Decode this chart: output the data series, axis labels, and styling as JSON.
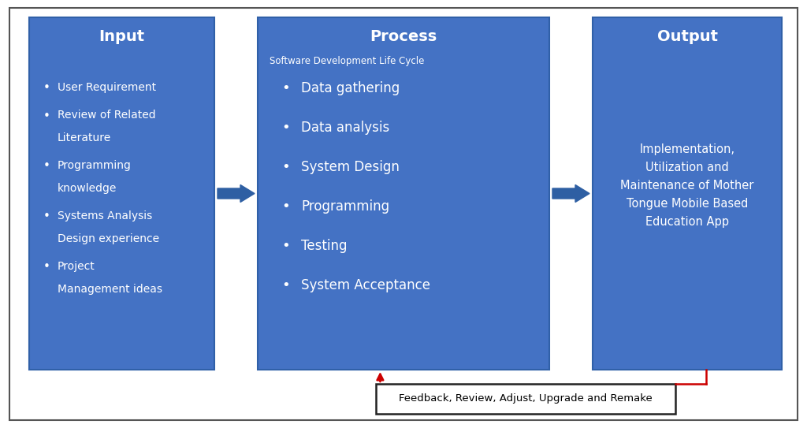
{
  "box_color": "#4472C4",
  "text_color": "#FFFFFF",
  "bg_color": "#FFFFFF",
  "border_color": "#555555",
  "arrow_color": "#2E5FA3",
  "feedback_arrow_color": "#CC0000",
  "feedback_box_color": "#FFFFFF",
  "feedback_border_color": "#222222",
  "feedback_text_color": "#000000",
  "title_input": "Input",
  "title_process": "Process",
  "title_output": "Output",
  "subtitle_process": "Software Development Life Cycle",
  "input_items": [
    [
      "User Requirement"
    ],
    [
      "Review of Related",
      "Literature"
    ],
    [
      "Programming",
      "knowledge"
    ],
    [
      "Systems Analysis",
      "Design experience"
    ],
    [
      "Project",
      "Management ideas"
    ]
  ],
  "process_items": [
    "Data gathering",
    "Data analysis",
    "System Design",
    "Programming",
    "Testing",
    "System Acceptance"
  ],
  "output_text": "Implementation,\nUtilization and\nMaintenance of Mother\nTongue Mobile Based\nEducation App",
  "feedback_text": "Feedback, Review, Adjust, Upgrade and Remake",
  "fig_width": 10.24,
  "fig_height": 5.43,
  "dpi": 100
}
